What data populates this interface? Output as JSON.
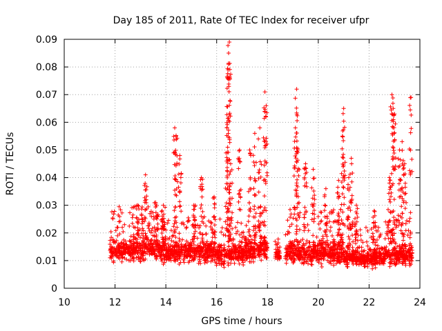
{
  "chart_data": {
    "type": "scatter",
    "title": "Day 185 of 2011, Rate Of TEC Index for receiver ufpr",
    "xlabel": "GPS time / hours",
    "ylabel": "ROTI / TECUs",
    "xlim": [
      10,
      24
    ],
    "ylim": [
      0,
      0.09
    ],
    "xticks": [
      "10",
      "12",
      "14",
      "16",
      "18",
      "20",
      "22",
      "24"
    ],
    "yticks": [
      "0",
      "0.01",
      "0.02",
      "0.03",
      "0.04",
      "0.05",
      "0.06",
      "0.07",
      "0.08",
      "0.09"
    ],
    "grid": true,
    "marker": "plus",
    "color": "#ff0000",
    "series": [
      {
        "segments": [
          {
            "x": [
              11.8,
              14.0
            ],
            "base": 0.014,
            "spread": 0.013,
            "spikes": [
              [
                12.9,
                0.03
              ],
              [
                13.2,
                0.041
              ],
              [
                13.6,
                0.031
              ],
              [
                13.9,
                0.03
              ]
            ]
          },
          {
            "x": [
              14.0,
              15.9
            ],
            "base": 0.013,
            "spread": 0.011,
            "spikes": [
              [
                14.35,
                0.058
              ],
              [
                14.4,
                0.055
              ],
              [
                14.55,
                0.048
              ],
              [
                15.4,
                0.04
              ],
              [
                15.1,
                0.03
              ],
              [
                15.9,
                0.033
              ]
            ]
          },
          {
            "x": [
              15.9,
              17.1
            ],
            "base": 0.012,
            "spread": 0.011,
            "spikes": [
              [
                16.4,
                0.058
              ],
              [
                16.45,
                0.079
              ],
              [
                16.5,
                0.089
              ],
              [
                16.47,
                0.085
              ],
              [
                16.48,
                0.073
              ],
              [
                16.55,
                0.045
              ],
              [
                16.9,
                0.05
              ]
            ]
          },
          {
            "x": [
              17.1,
              18.0
            ],
            "base": 0.014,
            "spread": 0.013,
            "spikes": [
              [
                17.5,
                0.056
              ],
              [
                17.7,
                0.058
              ],
              [
                17.9,
                0.071
              ],
              [
                17.95,
                0.066
              ],
              [
                17.3,
                0.05
              ]
            ]
          },
          {
            "x": [
              18.3,
              18.5
            ],
            "base": 0.012,
            "spread": 0.005,
            "spikes": []
          },
          {
            "x": [
              18.7,
              21.0
            ],
            "base": 0.013,
            "spread": 0.013,
            "spikes": [
              [
                19.15,
                0.072
              ],
              [
                19.1,
                0.058
              ],
              [
                19.2,
                0.05
              ],
              [
                19.5,
                0.045
              ],
              [
                19.8,
                0.043
              ],
              [
                20.3,
                0.036
              ],
              [
                20.8,
                0.039
              ],
              [
                21.0,
                0.065
              ],
              [
                20.95,
                0.055
              ]
            ]
          },
          {
            "x": [
              21.0,
              22.6
            ],
            "base": 0.011,
            "spread": 0.01,
            "spikes": [
              [
                21.3,
                0.047
              ],
              [
                21.2,
                0.04
              ],
              [
                21.5,
                0.03
              ],
              [
                22.2,
                0.028
              ]
            ]
          },
          {
            "x": [
              22.6,
              23.7
            ],
            "base": 0.012,
            "spread": 0.011,
            "spikes": [
              [
                22.9,
                0.07
              ],
              [
                22.95,
                0.065
              ],
              [
                23.0,
                0.063
              ],
              [
                23.3,
                0.053
              ],
              [
                23.4,
                0.045
              ],
              [
                23.2,
                0.05
              ],
              [
                23.65,
                0.069
              ],
              [
                22.8,
                0.04
              ]
            ]
          }
        ]
      }
    ]
  }
}
